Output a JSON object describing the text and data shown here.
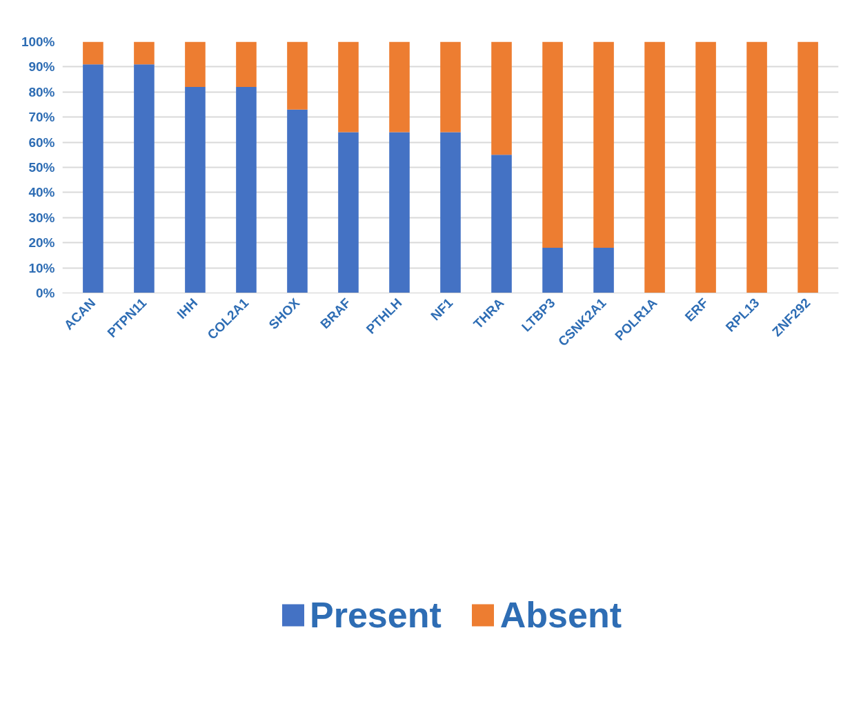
{
  "chart_data": {
    "type": "bar",
    "stacked": true,
    "categories": [
      "ACAN",
      "PTPN11",
      "IHH",
      "COL2A1",
      "SHOX",
      "BRAF",
      "PTHLH",
      "NF1",
      "THRA",
      "LTBP3",
      "CSNK2A1",
      "POLR1A",
      "ERF",
      "RPL13",
      "ZNF292"
    ],
    "series": [
      {
        "name": "Present",
        "color": "#4472c4",
        "values": [
          91,
          91,
          82,
          82,
          73,
          64,
          64,
          64,
          55,
          18,
          18,
          0,
          0,
          0,
          0
        ]
      },
      {
        "name": "Absent",
        "color": "#ed7d31",
        "values": [
          9,
          9,
          18,
          18,
          27,
          36,
          36,
          36,
          45,
          82,
          82,
          100,
          100,
          100,
          100
        ]
      }
    ],
    "ylim": [
      0,
      100
    ],
    "yticks": [
      {
        "value": 0,
        "label": "0%"
      },
      {
        "value": 10,
        "label": "10%"
      },
      {
        "value": 20,
        "label": "20%"
      },
      {
        "value": 30,
        "label": "30%"
      },
      {
        "value": 40,
        "label": "40%"
      },
      {
        "value": 50,
        "label": "50%"
      },
      {
        "value": 60,
        "label": "60%"
      },
      {
        "value": 70,
        "label": "70%"
      },
      {
        "value": 80,
        "label": "80%"
      },
      {
        "value": 90,
        "label": "90%"
      },
      {
        "value": 100,
        "label": "100%"
      }
    ],
    "grid": "y",
    "legend": "bottom"
  }
}
